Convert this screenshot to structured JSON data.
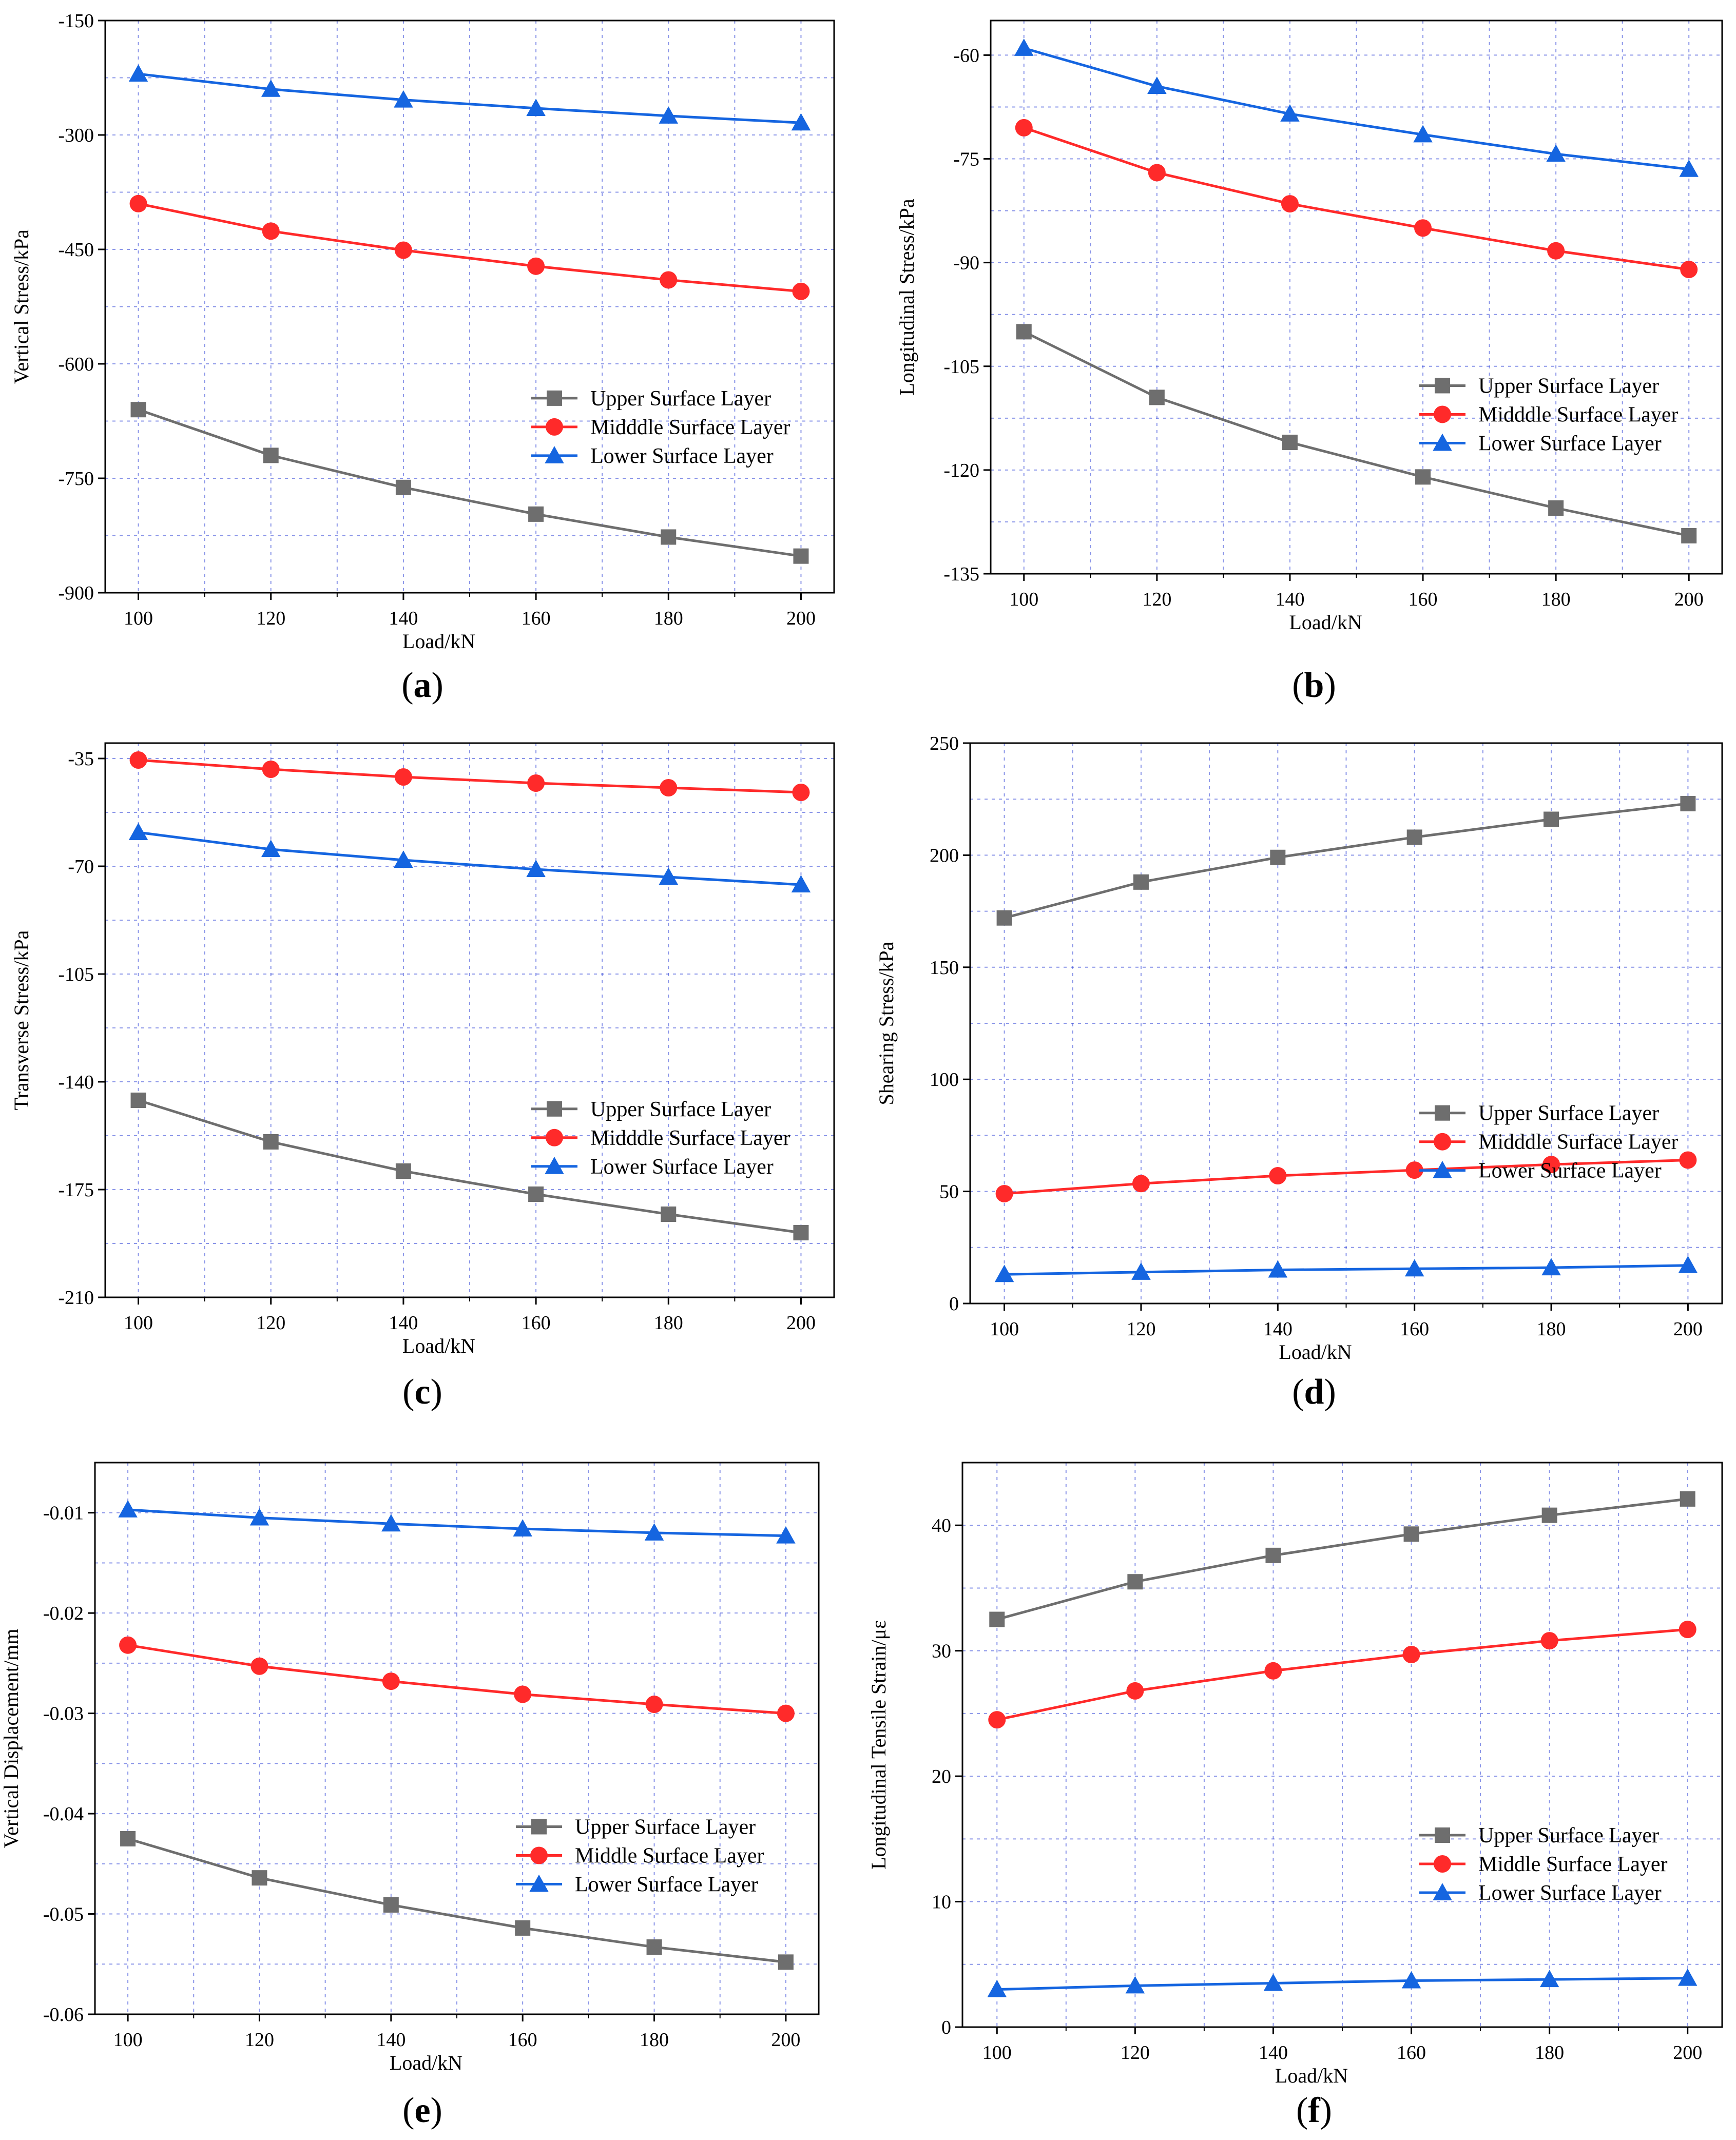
{
  "chart_data": [
    {
      "type": "line",
      "panel_label": "a",
      "xlabel": "Load/kN",
      "ylabel": "Vertical Stress/kPa",
      "categories": [
        100,
        120,
        140,
        160,
        180,
        200
      ],
      "xlim": [
        95,
        205
      ],
      "ylim": [
        -900,
        -150
      ],
      "yticks": [
        -150,
        -300,
        -450,
        -600,
        -750,
        -900
      ],
      "legend_position": "right",
      "series": [
        {
          "name": "Upper Surface Layer",
          "values": [
            -660,
            -720,
            -762,
            -797,
            -827,
            -852
          ]
        },
        {
          "name": "Midddle Surface Layer",
          "values": [
            -390,
            -426,
            -451,
            -472,
            -490,
            -505
          ]
        },
        {
          "name": "Lower Surface Layer",
          "values": [
            -220,
            -240,
            -254,
            -265,
            -275,
            -284
          ]
        }
      ]
    },
    {
      "type": "line",
      "panel_label": "b",
      "xlabel": "Load/kN",
      "ylabel": "Longitudinal Stress/kPa",
      "categories": [
        100,
        120,
        140,
        160,
        180,
        200
      ],
      "xlim": [
        95,
        205
      ],
      "ylim": [
        -135,
        -55
      ],
      "yticks": [
        -60,
        -75,
        -90,
        -105,
        -120,
        -135
      ],
      "legend_position": "right",
      "series": [
        {
          "name": "Upper Surface Layer",
          "values": [
            -100,
            -109.5,
            -116,
            -121,
            -125.5,
            -129.5
          ]
        },
        {
          "name": "Midddle Surface Layer",
          "values": [
            -70.5,
            -77,
            -81.5,
            -85,
            -88.3,
            -91
          ]
        },
        {
          "name": "Lower Surface Layer",
          "values": [
            -59,
            -64.5,
            -68.5,
            -71.5,
            -74.3,
            -76.5
          ]
        }
      ]
    },
    {
      "type": "line",
      "panel_label": "c",
      "xlabel": "Load/kN",
      "ylabel": "Transverse Stress/kPa",
      "categories": [
        100,
        120,
        140,
        160,
        180,
        200
      ],
      "xlim": [
        95,
        205
      ],
      "ylim": [
        -210,
        -30
      ],
      "yticks": [
        -35,
        -70,
        -105,
        -140,
        -175,
        -210
      ],
      "legend_position": "right",
      "series": [
        {
          "name": "Upper Surface Layer",
          "values": [
            -146,
            -159.5,
            -169,
            -176.5,
            -183,
            -189
          ]
        },
        {
          "name": "Midddle Surface Layer",
          "values": [
            -35.5,
            -38.5,
            -41,
            -43,
            -44.5,
            -46
          ]
        },
        {
          "name": "Lower Surface Layer",
          "values": [
            -59,
            -64.5,
            -68,
            -71,
            -73.5,
            -76
          ]
        }
      ]
    },
    {
      "type": "line",
      "panel_label": "d",
      "xlabel": "Load/kN",
      "ylabel": "Shearing Stress/kPa",
      "categories": [
        100,
        120,
        140,
        160,
        180,
        200
      ],
      "xlim": [
        95,
        205
      ],
      "ylim": [
        0,
        250
      ],
      "yticks": [
        0,
        50,
        100,
        150,
        200,
        250
      ],
      "legend_position": "right",
      "series": [
        {
          "name": "Upper Surface Layer",
          "values": [
            172,
            188,
            199,
            208,
            216,
            223
          ]
        },
        {
          "name": "Midddle Surface Layer",
          "values": [
            49,
            53.5,
            57,
            59.5,
            62,
            64
          ]
        },
        {
          "name": "Lower Surface Layer",
          "values": [
            13,
            14,
            15,
            15.5,
            16,
            17
          ]
        }
      ]
    },
    {
      "type": "line",
      "panel_label": "e",
      "xlabel": "Load/kN",
      "ylabel": "Vertical Displacement/mm",
      "categories": [
        100,
        120,
        140,
        160,
        180,
        200
      ],
      "xlim": [
        95,
        205
      ],
      "ylim": [
        -0.06,
        -0.005
      ],
      "yticks": [
        -0.01,
        -0.02,
        -0.03,
        -0.04,
        -0.05,
        -0.06
      ],
      "legend_position": "right",
      "series": [
        {
          "name": "Upper  Surface Layer",
          "values": [
            -0.0425,
            -0.0464,
            -0.0491,
            -0.0514,
            -0.0533,
            -0.0548
          ]
        },
        {
          "name": "Middle Surface Layer",
          "values": [
            -0.0232,
            -0.0253,
            -0.0268,
            -0.0281,
            -0.0291,
            -0.03
          ]
        },
        {
          "name": "Lower  Surface Layer",
          "values": [
            -0.0097,
            -0.0105,
            -0.0111,
            -0.0116,
            -0.012,
            -0.0123
          ]
        }
      ]
    },
    {
      "type": "line",
      "panel_label": "f",
      "xlabel": "Load/kN",
      "ylabel": "Longitudinal Tensile Strain/με",
      "categories": [
        100,
        120,
        140,
        160,
        180,
        200
      ],
      "xlim": [
        95,
        205
      ],
      "ylim": [
        0,
        45
      ],
      "yticks": [
        0,
        10,
        20,
        30,
        40
      ],
      "legend_position": "right",
      "series": [
        {
          "name": "Upper  Surface Layer",
          "values": [
            32.5,
            35.5,
            37.6,
            39.3,
            40.8,
            42.1
          ]
        },
        {
          "name": "Middle Surface Layer",
          "values": [
            24.5,
            26.8,
            28.4,
            29.7,
            30.8,
            31.7
          ]
        },
        {
          "name": "Lower  Surface Layer",
          "values": [
            3,
            3.3,
            3.5,
            3.7,
            3.8,
            3.9
          ]
        }
      ]
    }
  ],
  "series_colors": [
    "#6e6e6e",
    "#ff2a2a",
    "#1565e0"
  ],
  "series_markers": [
    "square",
    "circle",
    "triangle"
  ]
}
